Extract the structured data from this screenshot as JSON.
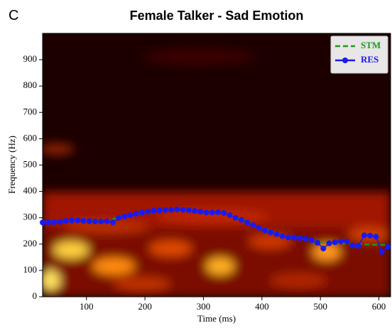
{
  "chart_data": {
    "type": "line",
    "panel_label": "C",
    "title": "Female Talker - Sad Emotion",
    "x_label": "Time (ms)",
    "y_label": "Frequency (Hz)",
    "xlim": [
      25,
      620
    ],
    "ylim": [
      0,
      1000
    ],
    "xticks": [
      100,
      200,
      300,
      400,
      500,
      600
    ],
    "yticks": [
      0,
      100,
      200,
      300,
      400,
      500,
      600,
      700,
      800,
      900
    ],
    "x": [
      25,
      35,
      45,
      55,
      65,
      75,
      85,
      95,
      105,
      115,
      125,
      135,
      145,
      155,
      165,
      175,
      185,
      195,
      205,
      215,
      225,
      235,
      245,
      255,
      265,
      275,
      285,
      295,
      305,
      315,
      325,
      335,
      345,
      355,
      365,
      375,
      385,
      395,
      405,
      415,
      425,
      435,
      445,
      455,
      465,
      475,
      485,
      495,
      505,
      515,
      525,
      535,
      545,
      555,
      565,
      575,
      585,
      595,
      605,
      615
    ],
    "legend_position": "upper right",
    "series": [
      {
        "name": "STM",
        "color": "#1a9a1a",
        "style": "dashed",
        "values": [
          283,
          284,
          285,
          286,
          288,
          289,
          289,
          289,
          288,
          288,
          288,
          289,
          295,
          301,
          305,
          310,
          315,
          319,
          323,
          326,
          328,
          329,
          330,
          330,
          330,
          329,
          327,
          324,
          322,
          321,
          320,
          317,
          311,
          302,
          293,
          284,
          274,
          264,
          255,
          247,
          240,
          233,
          228,
          225,
          222,
          219,
          215,
          210,
          205,
          204,
          204,
          203,
          202,
          201,
          200,
          199,
          198,
          197,
          197,
          196
        ]
      },
      {
        "name": "RES",
        "color": "#1a1aee",
        "style": "markers",
        "values": [
          282,
          283,
          283,
          285,
          288,
          290,
          290,
          288,
          287,
          286,
          286,
          287,
          282,
          300,
          305,
          310,
          315,
          320,
          323,
          327,
          328,
          330,
          330,
          332,
          330,
          329,
          326,
          323,
          320,
          320,
          321,
          318,
          310,
          300,
          292,
          282,
          272,
          262,
          252,
          245,
          238,
          230,
          225,
          225,
          222,
          220,
          215,
          205,
          183,
          203,
          207,
          210,
          210,
          195,
          193,
          233,
          232,
          228,
          170,
          190
        ]
      }
    ]
  }
}
